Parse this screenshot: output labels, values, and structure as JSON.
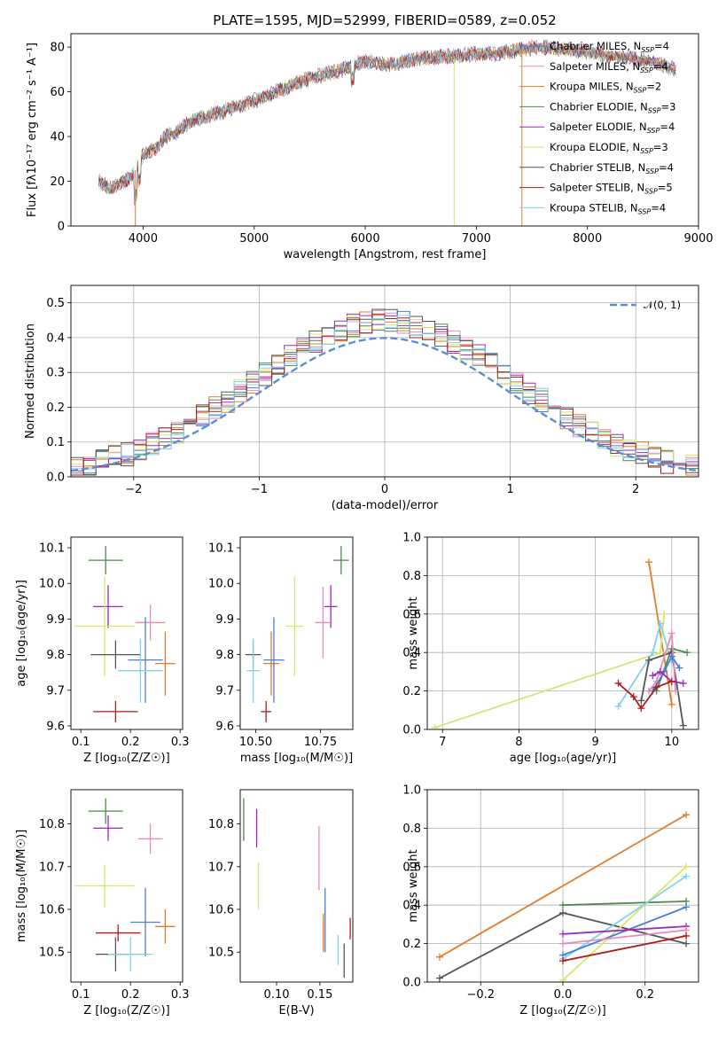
{
  "colors": {
    "s0": "#4a7fd4",
    "s1": "#e889bf",
    "s2": "#e07c2a",
    "s3": "#4c8a4c",
    "s4": "#9c2bbd",
    "s5": "#dbe56a",
    "s6": "#555555",
    "s7": "#b01c1c",
    "s8": "#7fd3e8",
    "normal": "#5b8dd9",
    "grid": "#b0b0b0"
  },
  "chart_data": [
    {
      "id": "spectrum",
      "type": "line",
      "title": "PLATE=1595, MJD=52999, FIBERID=0589, z=0.052",
      "xlabel": "wavelength [Angstrom, rest frame]",
      "ylabel": "Flux [fλ10⁻¹⁷ erg cm⁻² s⁻¹ A⁻¹]",
      "xlim": [
        3350,
        9000
      ],
      "ylim": [
        0,
        86
      ],
      "xticks": [
        4000,
        5000,
        6000,
        7000,
        8000,
        9000
      ],
      "yticks": [
        0,
        20,
        40,
        60,
        80
      ],
      "continuum": {
        "x": [
          3600,
          3700,
          3800,
          3900,
          3950,
          4000,
          4100,
          4200,
          4300,
          4400,
          4500,
          4700,
          5000,
          5200,
          5500,
          5800,
          6000,
          6200,
          6500,
          6800,
          7000,
          7200,
          7400,
          7600,
          7800,
          8000,
          8200,
          8400,
          8600,
          8800
        ],
        "y": [
          20,
          17,
          19,
          22,
          27,
          32,
          34,
          40,
          42,
          46,
          48,
          51,
          56,
          60,
          66,
          70,
          74,
          72,
          75,
          76,
          77,
          77,
          79,
          80,
          79,
          78,
          76,
          75,
          73,
          70
        ]
      },
      "dips": [
        {
          "x": 3930,
          "series": 2
        },
        {
          "x": 6800,
          "series": 5
        },
        {
          "x": 7410,
          "series": 2
        }
      ],
      "legend_position": "upper right",
      "legend": [
        "Chabrier MILES, N_SSP=4",
        "Salpeter MILES, N_SSP=4",
        "Kroupa MILES, N_SSP=2",
        "Chabrier ELODIE, N_SSP=3",
        "Salpeter ELODIE, N_SSP=4",
        "Kroupa ELODIE, N_SSP=3",
        "Chabrier STELIB, N_SSP=4",
        "Salpeter STELIB, N_SSP=5",
        "Kroupa STELIB, N_SSP=4"
      ]
    },
    {
      "id": "residuals",
      "type": "line",
      "xlabel": "(data-model)/error",
      "ylabel": "Normed distribution",
      "xlim": [
        -2.5,
        2.5
      ],
      "ylim": [
        0,
        0.55
      ],
      "xticks": [
        -2,
        -1,
        0,
        1,
        2
      ],
      "yticks": [
        0.0,
        0.1,
        0.2,
        0.3,
        0.4,
        0.5
      ],
      "grid": true,
      "legend": [
        "𝒩(0, 1)"
      ],
      "legend_position": "upper right",
      "normal_curve": {
        "mu": 0,
        "sigma": 1
      }
    },
    {
      "id": "age_vs_Z",
      "type": "scatter",
      "xlabel": "Z [log₁₀(Z/Z☉)]",
      "ylabel": "age  [log₁₀(age/yr)]",
      "xlim": [
        0.08,
        0.305
      ],
      "ylim": [
        9.59,
        10.13
      ],
      "xticks": [
        0.1,
        0.2,
        0.3
      ],
      "yticks": [
        9.6,
        9.7,
        9.8,
        9.9,
        10.0,
        10.1
      ],
      "points": [
        {
          "s": 3,
          "x": 0.15,
          "y": 10.065,
          "ex": 0.035,
          "ey": 0.04
        },
        {
          "s": 4,
          "x": 0.155,
          "y": 9.935,
          "ex": 0.03,
          "ey": 0.06
        },
        {
          "s": 5,
          "x": 0.148,
          "y": 9.88,
          "ex": 0.06,
          "ey": 0.14
        },
        {
          "s": 1,
          "x": 0.24,
          "y": 9.89,
          "ex": 0.03,
          "ey": 0.05
        },
        {
          "s": 6,
          "x": 0.17,
          "y": 9.8,
          "ex": 0.05,
          "ey": 0.04
        },
        {
          "s": 2,
          "x": 0.27,
          "y": 9.775,
          "ex": 0.02,
          "ey": 0.09
        },
        {
          "s": 0,
          "x": 0.23,
          "y": 9.785,
          "ex": 0.035,
          "ey": 0.12
        },
        {
          "s": 8,
          "x": 0.22,
          "y": 9.755,
          "ex": 0.045,
          "ey": 0.09
        },
        {
          "s": 7,
          "x": 0.17,
          "y": 9.64,
          "ex": 0.045,
          "ey": 0.03
        }
      ]
    },
    {
      "id": "age_vs_mass",
      "type": "scatter",
      "xlabel": "mass [log₁₀(M/M☉)]",
      "ylabel": "",
      "xlim": [
        10.44,
        10.875
      ],
      "ylim": [
        9.59,
        10.13
      ],
      "xticks": [
        10.5,
        10.75
      ],
      "xticklabels": [
        "10.50",
        "10.75"
      ],
      "yticks": [
        9.6,
        9.7,
        9.8,
        9.9,
        10.0,
        10.1
      ],
      "points": [
        {
          "s": 3,
          "x": 10.83,
          "y": 10.065,
          "ex": 0.03,
          "ey": 0.04
        },
        {
          "s": 4,
          "x": 10.79,
          "y": 9.935,
          "ex": 0.025,
          "ey": 0.06
        },
        {
          "s": 5,
          "x": 10.65,
          "y": 9.88,
          "ex": 0.035,
          "ey": 0.14
        },
        {
          "s": 1,
          "x": 10.76,
          "y": 9.89,
          "ex": 0.03,
          "ey": 0.1
        },
        {
          "s": 6,
          "x": 10.49,
          "y": 9.8,
          "ex": 0.03,
          "ey": 0.04
        },
        {
          "s": 2,
          "x": 10.56,
          "y": 9.775,
          "ex": 0.03,
          "ey": 0.09
        },
        {
          "s": 0,
          "x": 10.57,
          "y": 9.785,
          "ex": 0.04,
          "ey": 0.12
        },
        {
          "s": 8,
          "x": 10.49,
          "y": 9.755,
          "ex": 0.025,
          "ey": 0.09
        },
        {
          "s": 7,
          "x": 10.54,
          "y": 9.64,
          "ex": 0.02,
          "ey": 0.03
        }
      ]
    },
    {
      "id": "weight_vs_age",
      "type": "line",
      "xlabel": "age  [log₁₀(age/yr)]",
      "ylabel": "mass weight",
      "xlim": [
        6.8,
        10.35
      ],
      "ylim": [
        0,
        1.0
      ],
      "xticks": [
        7,
        8,
        9,
        10
      ],
      "yticks": [
        0.0,
        0.2,
        0.4,
        0.6,
        0.8,
        1.0
      ],
      "grid": true,
      "series": [
        {
          "s": 2,
          "x": [
            9.7,
            10.0
          ],
          "y": [
            0.87,
            0.13
          ]
        },
        {
          "s": 5,
          "x": [
            6.9,
            9.85,
            9.9
          ],
          "y": [
            0.01,
            0.4,
            0.6
          ]
        },
        {
          "s": 8,
          "x": [
            9.3,
            9.75,
            9.85,
            10.0
          ],
          "y": [
            0.12,
            0.4,
            0.55,
            0.35
          ]
        },
        {
          "s": 3,
          "x": [
            9.8,
            10.0,
            10.2
          ],
          "y": [
            0.2,
            0.42,
            0.4
          ]
        },
        {
          "s": 6,
          "x": [
            9.6,
            9.7,
            10.0,
            10.15
          ],
          "y": [
            0.15,
            0.36,
            0.4,
            0.02
          ]
        },
        {
          "s": 1,
          "x": [
            9.7,
            9.8,
            10.0,
            10.05
          ],
          "y": [
            0.2,
            0.25,
            0.5,
            0.2
          ]
        },
        {
          "s": 0,
          "x": [
            9.75,
            9.9,
            10.0,
            10.1
          ],
          "y": [
            0.2,
            0.3,
            0.38,
            0.32
          ]
        },
        {
          "s": 4,
          "x": [
            9.75,
            9.85,
            10.0,
            10.15
          ],
          "y": [
            0.28,
            0.3,
            0.25,
            0.24
          ]
        },
        {
          "s": 7,
          "x": [
            9.3,
            9.5,
            9.6,
            9.8,
            10.0
          ],
          "y": [
            0.24,
            0.17,
            0.11,
            0.22,
            0.25
          ]
        }
      ]
    },
    {
      "id": "mass_vs_Z",
      "type": "scatter",
      "xlabel": "Z [log₁₀(Z/Z☉)]",
      "ylabel": "mass [log₁₀(M/M☉)]",
      "xlim": [
        0.08,
        0.305
      ],
      "ylim": [
        10.43,
        10.88
      ],
      "xticks": [
        0.1,
        0.2,
        0.3
      ],
      "yticks": [
        10.5,
        10.6,
        10.7,
        10.8
      ],
      "points": [
        {
          "s": 3,
          "x": 0.15,
          "y": 10.83,
          "ex": 0.035,
          "ey": 0.03
        },
        {
          "s": 4,
          "x": 0.155,
          "y": 10.79,
          "ex": 0.03,
          "ey": 0.03
        },
        {
          "s": 1,
          "x": 0.24,
          "y": 10.765,
          "ex": 0.025,
          "ey": 0.035
        },
        {
          "s": 5,
          "x": 0.148,
          "y": 10.655,
          "ex": 0.06,
          "ey": 0.05
        },
        {
          "s": 0,
          "x": 0.23,
          "y": 10.57,
          "ex": 0.03,
          "ey": 0.08
        },
        {
          "s": 2,
          "x": 0.27,
          "y": 10.56,
          "ex": 0.02,
          "ey": 0.04
        },
        {
          "s": 7,
          "x": 0.175,
          "y": 10.545,
          "ex": 0.045,
          "ey": 0.02
        },
        {
          "s": 6,
          "x": 0.17,
          "y": 10.495,
          "ex": 0.04,
          "ey": 0.04
        },
        {
          "s": 8,
          "x": 0.2,
          "y": 10.495,
          "ex": 0.045,
          "ey": 0.04
        }
      ]
    },
    {
      "id": "ebv",
      "type": "scatter",
      "xlabel": "E(B-V)",
      "ylabel": "",
      "xlim": [
        0.058,
        0.188
      ],
      "ylim": [
        10.43,
        10.88
      ],
      "xticks": [
        0.1,
        0.15
      ],
      "xticklabels": [
        "0.10",
        "0.15"
      ],
      "yticks": [
        10.5,
        10.6,
        10.7,
        10.8
      ],
      "points": [
        {
          "s": 3,
          "x": 0.062,
          "y": 10.81,
          "ex": 0,
          "ey": 0.05
        },
        {
          "s": 4,
          "x": 0.077,
          "y": 10.79,
          "ex": 0,
          "ey": 0.045
        },
        {
          "s": 5,
          "x": 0.079,
          "y": 10.655,
          "ex": 0,
          "ey": 0.055
        },
        {
          "s": 1,
          "x": 0.149,
          "y": 10.72,
          "ex": 0,
          "ey": 0.075
        },
        {
          "s": 0,
          "x": 0.156,
          "y": 10.575,
          "ex": 0,
          "ey": 0.075
        },
        {
          "s": 2,
          "x": 0.154,
          "y": 10.545,
          "ex": 0,
          "ey": 0.045
        },
        {
          "s": 8,
          "x": 0.171,
          "y": 10.505,
          "ex": 0,
          "ey": 0.035
        },
        {
          "s": 6,
          "x": 0.178,
          "y": 10.48,
          "ex": 0,
          "ey": 0.04
        },
        {
          "s": 7,
          "x": 0.185,
          "y": 10.555,
          "ex": 0,
          "ey": 0.025
        }
      ]
    },
    {
      "id": "weight_vs_Z",
      "type": "line",
      "xlabel": "Z [log₁₀(Z/Z☉)]",
      "ylabel": "mass weight",
      "xlim": [
        -0.33,
        0.33
      ],
      "ylim": [
        0,
        1.0
      ],
      "xticks": [
        -0.2,
        0.0,
        0.2
      ],
      "yticks": [
        0.0,
        0.2,
        0.4,
        0.6,
        0.8,
        1.0
      ],
      "grid": true,
      "series": [
        {
          "s": 2,
          "x": [
            -0.3,
            0.3
          ],
          "y": [
            0.13,
            0.87
          ]
        },
        {
          "s": 6,
          "x": [
            -0.3,
            0.0,
            0.3
          ],
          "y": [
            0.02,
            0.36,
            0.2
          ]
        },
        {
          "s": 3,
          "x": [
            0.0,
            0.3
          ],
          "y": [
            0.4,
            0.42
          ]
        },
        {
          "s": 5,
          "x": [
            0.0,
            0.3
          ],
          "y": [
            0.01,
            0.6
          ]
        },
        {
          "s": 8,
          "x": [
            0.0,
            0.3
          ],
          "y": [
            0.12,
            0.55
          ]
        },
        {
          "s": 0,
          "x": [
            0.0,
            0.3
          ],
          "y": [
            0.14,
            0.39
          ]
        },
        {
          "s": 4,
          "x": [
            0.0,
            0.3
          ],
          "y": [
            0.25,
            0.29
          ]
        },
        {
          "s": 1,
          "x": [
            0.0,
            0.3
          ],
          "y": [
            0.2,
            0.27
          ]
        },
        {
          "s": 7,
          "x": [
            0.0,
            0.3
          ],
          "y": [
            0.11,
            0.24
          ]
        }
      ]
    }
  ]
}
